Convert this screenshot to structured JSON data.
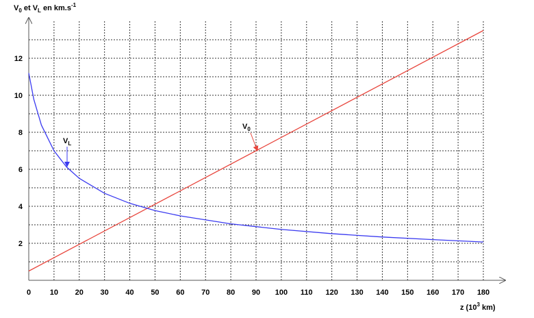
{
  "chart_data": {
    "type": "line",
    "y_label": [
      "V",
      "0",
      " et  V",
      "L",
      " en km.s",
      "-1"
    ],
    "x_label": [
      "z (10",
      "3",
      " km)"
    ],
    "xlim": [
      0,
      180
    ],
    "ylim": [
      0,
      14
    ],
    "xticks": [
      0,
      10,
      20,
      30,
      40,
      50,
      60,
      70,
      80,
      90,
      100,
      110,
      120,
      130,
      140,
      150,
      160,
      170,
      180
    ],
    "yticks": [
      2,
      4,
      6,
      8,
      10,
      12
    ],
    "yminor": [
      1,
      3,
      5,
      7,
      9,
      11,
      13
    ],
    "grid": true,
    "series": [
      {
        "label": [
          "V",
          "0"
        ],
        "color": "#e8453c",
        "x": [
          0,
          180
        ],
        "values": [
          0.5,
          13.5
        ]
      },
      {
        "label": [
          "V",
          "L"
        ],
        "color": "#3a3af0",
        "x": [
          0,
          2,
          5,
          10,
          15,
          20,
          30,
          40,
          50,
          60,
          80,
          100,
          120,
          140,
          160,
          180
        ],
        "values": [
          11.2,
          9.78,
          8.39,
          7.0,
          6.12,
          5.51,
          4.7,
          4.16,
          3.77,
          3.48,
          3.05,
          2.75,
          2.52,
          2.34,
          2.2,
          2.07
        ]
      }
    ]
  }
}
